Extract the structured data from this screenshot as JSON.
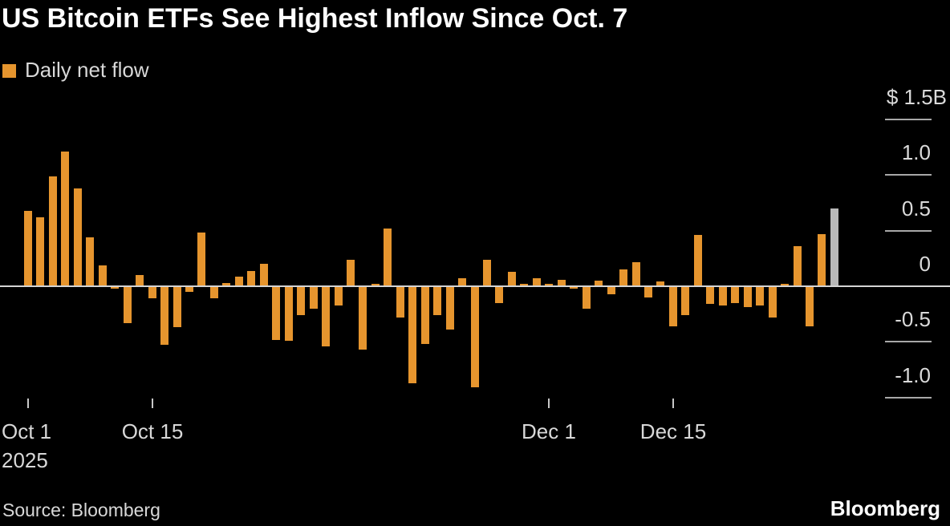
{
  "title": "US Bitcoin ETFs See Highest Inflow Since Oct. 7",
  "legend": {
    "label": "Daily net flow"
  },
  "source": "Source: Bloomberg",
  "logo": "Bloomberg",
  "colors": {
    "background": "#000000",
    "bar": "#E6952E",
    "bar_highlight": "#B9B9B9",
    "gridline": "#A8A8A8",
    "zero_line": "#D4D4D4",
    "axis_text": "#DADADA",
    "title_text": "#FFFFFF"
  },
  "chart_data": {
    "type": "bar",
    "title": "US Bitcoin ETFs See Highest Inflow Since Oct. 7",
    "series_name": "Daily net flow",
    "unit": "USD billions, daily net flow",
    "ylim": [
      -1.25,
      1.6
    ],
    "grid": "right-edge ticks per 0.5, full-width zero line",
    "legend_position": "top-left",
    "y_ticks": [
      {
        "label": "$ 1.5B",
        "value": 1.5
      },
      {
        "label": "1.0",
        "value": 1.0
      },
      {
        "label": "0.5",
        "value": 0.5
      },
      {
        "label": "0",
        "value": 0
      },
      {
        "label": "-0.5",
        "value": -0.5
      },
      {
        "label": "-1.0",
        "value": -1.0
      }
    ],
    "x_ticks": [
      {
        "label": "Oct 1",
        "sublabel": "2025",
        "index": 0
      },
      {
        "label": "Oct 15",
        "index": 10
      },
      {
        "label": "Dec 1",
        "index": 42
      },
      {
        "label": "Dec 15",
        "index": 52
      }
    ],
    "values": [
      0.68,
      0.62,
      0.99,
      1.21,
      0.88,
      0.44,
      0.19,
      -0.02,
      -0.33,
      0.1,
      -0.11,
      -0.53,
      -0.37,
      -0.05,
      0.48,
      -0.11,
      0.03,
      0.09,
      0.14,
      0.2,
      -0.48,
      -0.49,
      -0.26,
      -0.2,
      -0.54,
      -0.17,
      0.24,
      -0.57,
      0.02,
      0.52,
      -0.28,
      -0.87,
      -0.52,
      -0.26,
      -0.39,
      0.07,
      -0.91,
      0.24,
      -0.15,
      0.13,
      0.02,
      0.07,
      0.02,
      0.06,
      -0.02,
      -0.2,
      0.05,
      -0.07,
      0.15,
      0.22,
      -0.1,
      0.04,
      -0.36,
      -0.26,
      0.46,
      -0.16,
      -0.17,
      -0.15,
      -0.19,
      -0.17,
      -0.28,
      0.02,
      0.36,
      -0.36,
      0.47,
      0.7
    ],
    "highlight_last": true
  }
}
